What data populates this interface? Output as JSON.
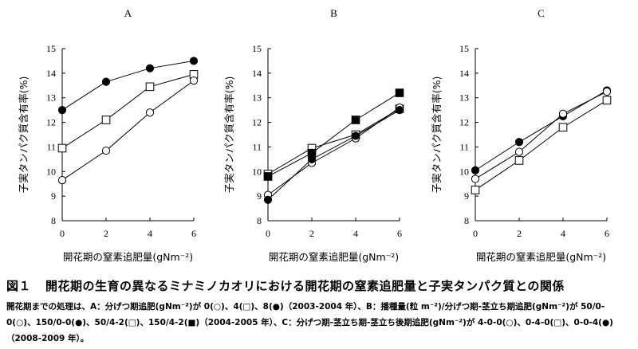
{
  "figure": {
    "caption_number": "図１",
    "caption_title": "開花期の生育の異なるミナミノカオリにおける開花期の窒素追肥量と子実タンパク質との関係",
    "note": "開花期までの処理は、A：分げつ期追肥(gNm⁻²)が 0(○)、4(□)、8(●)（2003-2004 年）、B：播種量(粒 m⁻²)/分げつ期-茎立ち期追肥(gNm⁻²)が 50/0-0(○)、150/0-0(●)、50/4-2(□)、150/4-2(■)（2004-2005 年）、C：分げつ期-茎立ち期-茎立ち後期追肥(gNm⁻²)が 4-0-0(○)、0-4-0(□)、0-0-4(●)（2008-2009 年）。"
  },
  "chart_data": [
    {
      "panel": "A",
      "type": "line",
      "title": "A",
      "xlabel": "開花期の窒素追肥量(gNm⁻²)",
      "ylabel": "子実タンパク質含有率(%)",
      "xlim": [
        0,
        6
      ],
      "ylim": [
        8,
        15
      ],
      "xticks": [
        0,
        2,
        4,
        6
      ],
      "yticks": [
        8,
        9,
        10,
        11,
        12,
        13,
        14,
        15
      ],
      "grid": false,
      "x": [
        0,
        2,
        4,
        6
      ],
      "series": [
        {
          "marker": "filled-circle",
          "values": [
            12.5,
            13.65,
            14.2,
            14.5
          ]
        },
        {
          "marker": "open-square",
          "values": [
            10.95,
            12.1,
            13.45,
            13.95
          ]
        },
        {
          "marker": "open-circle",
          "values": [
            9.65,
            10.85,
            12.4,
            13.7
          ]
        }
      ]
    },
    {
      "panel": "B",
      "type": "line",
      "title": "B",
      "xlabel": "開花期の窒素追肥量(gNm⁻²)",
      "ylabel": "子実タンパク質含有率(%)",
      "xlim": [
        0,
        6
      ],
      "ylim": [
        8,
        15
      ],
      "xticks": [
        0,
        2,
        4,
        6
      ],
      "yticks": [
        8,
        9,
        10,
        11,
        12,
        13,
        14,
        15
      ],
      "grid": false,
      "x": [
        0,
        2,
        4,
        6
      ],
      "series": [
        {
          "marker": "open-square",
          "values": [
            9.9,
            10.95,
            11.5,
            12.55
          ]
        },
        {
          "marker": "filled-square",
          "values": [
            9.8,
            10.75,
            12.1,
            13.2
          ]
        },
        {
          "marker": "open-circle",
          "values": [
            9.05,
            10.35,
            11.35,
            12.6
          ]
        },
        {
          "marker": "filled-circle",
          "values": [
            8.85,
            10.5,
            11.45,
            12.5
          ]
        }
      ]
    },
    {
      "panel": "C",
      "type": "line",
      "title": "C",
      "xlabel": "開花期の窒素追肥量(gNm⁻²)",
      "ylabel": "子実タンパク質含有率(%)",
      "xlim": [
        0,
        6
      ],
      "ylim": [
        8,
        15
      ],
      "xticks": [
        0,
        2,
        4,
        6
      ],
      "yticks": [
        8,
        9,
        10,
        11,
        12,
        13,
        14,
        15
      ],
      "grid": false,
      "x": [
        0,
        2,
        4,
        6
      ],
      "series": [
        {
          "marker": "filled-circle",
          "values": [
            10.05,
            11.2,
            12.25,
            13.3
          ]
        },
        {
          "marker": "open-circle",
          "values": [
            9.7,
            10.8,
            12.35,
            13.25
          ]
        },
        {
          "marker": "open-square",
          "values": [
            9.25,
            10.45,
            11.8,
            12.9
          ]
        }
      ]
    }
  ]
}
